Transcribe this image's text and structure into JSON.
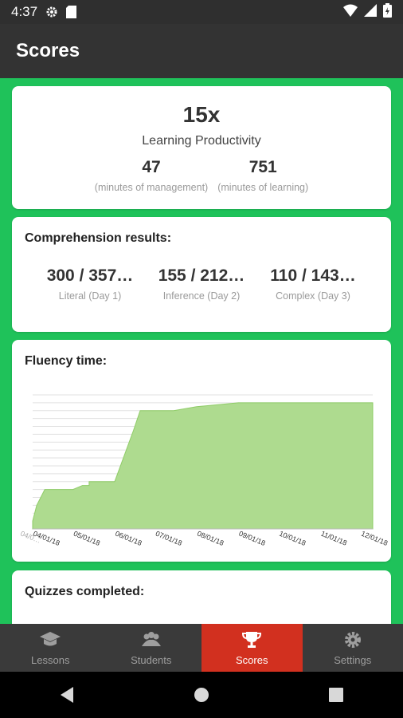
{
  "status": {
    "time": "4:37"
  },
  "appbar": {
    "title": "Scores"
  },
  "productivity": {
    "value": "15x",
    "label": "Learning Productivity",
    "management": {
      "value": "47",
      "caption": "(minutes of management)"
    },
    "learning": {
      "value": "751",
      "caption": "(minutes of learning)"
    }
  },
  "comprehension": {
    "title": "Comprehension results:",
    "items": [
      {
        "value": "300 / 357…",
        "caption": "Literal (Day 1)"
      },
      {
        "value": "155 / 212…",
        "caption": "Inference (Day 2)"
      },
      {
        "value": "110 / 143…",
        "caption": "Complex (Day 3)"
      }
    ]
  },
  "fluency": {
    "title": "Fluency time:"
  },
  "quizzes": {
    "title": "Quizzes completed:"
  },
  "tabs": [
    {
      "label": "Lessons",
      "icon": "graduation-cap-icon"
    },
    {
      "label": "Students",
      "icon": "students-icon"
    },
    {
      "label": "Scores",
      "icon": "trophy-icon"
    },
    {
      "label": "Settings",
      "icon": "gear-icon"
    }
  ],
  "colors": {
    "accent": "#1fc25a",
    "active_tab": "#d2301f",
    "area_fill": "#aedb8f"
  },
  "chart_data": {
    "type": "area",
    "x": [
      "04/01/18",
      "04/04/18",
      "04/10/18",
      "04/15/18",
      "04/23/18",
      "04/23/18",
      "05/01/18",
      "05/01/18",
      "05/08/18",
      "05/13/18",
      "05/13/18",
      "05/20/18",
      "06/01/18",
      "06/01/18",
      "06/15/18",
      "06/20/18",
      "06/26/18",
      "07/01/18",
      "07/15/18",
      "08/01/18",
      "09/01/18",
      "10/01/18",
      "11/01/18",
      "12/01/18",
      "12/10/18"
    ],
    "y": [
      2,
      6,
      10,
      10,
      10,
      10,
      10,
      10,
      11,
      11,
      12,
      12,
      12,
      12,
      25,
      30,
      30,
      30,
      30,
      31,
      32,
      32,
      32,
      32,
      32
    ],
    "x_tick_labels": [
      "04/0…",
      "04/01/18",
      "05/01/18",
      "06/01/18",
      "07/01/18",
      "08/01/18",
      "09/01/18",
      "10/01/18",
      "11/01/18",
      "12/01/18"
    ],
    "ylim": [
      0,
      34
    ],
    "grid": true
  }
}
